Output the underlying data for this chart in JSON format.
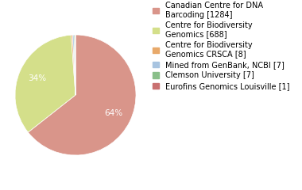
{
  "labels": [
    "Canadian Centre for DNA\nBarcoding [1284]",
    "Centre for Biodiversity\nGenomics [688]",
    "Centre for Biodiversity\nGenomics CRSCA [8]",
    "Mined from GenBank, NCBI [7]",
    "Clemson University [7]",
    "Eurofins Genomics Louisville [1]"
  ],
  "values": [
    1284,
    688,
    8,
    7,
    7,
    1
  ],
  "colors": [
    "#d9958a",
    "#d4df8a",
    "#e8a96a",
    "#a8c4e0",
    "#8abf8a",
    "#c97070"
  ],
  "startangle": 90,
  "background_color": "#ffffff",
  "fontsize": 7.5
}
